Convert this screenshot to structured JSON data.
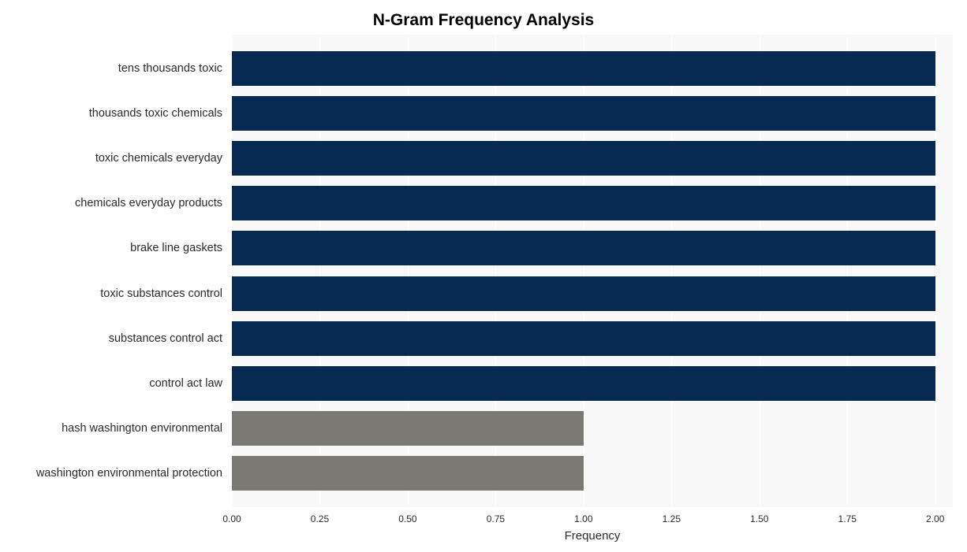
{
  "chart": {
    "type": "bar-horizontal",
    "title": "N-Gram Frequency Analysis",
    "title_fontsize": 21,
    "title_fontweight": "bold",
    "xlabel": "Frequency",
    "xlabel_fontsize": 15,
    "background_color": "#ffffff",
    "plot_background": "#f8f8f8",
    "grid_color": "#ffffff",
    "text_color": "#2a2a2a",
    "y_tick_fontsize": 14.5,
    "x_tick_fontsize": 12,
    "xlim": [
      0,
      2.05
    ],
    "x_ticks": [
      0.0,
      0.25,
      0.5,
      0.75,
      1.0,
      1.25,
      1.5,
      1.75,
      2.0
    ],
    "x_tick_labels": [
      "0.00",
      "0.25",
      "0.50",
      "0.75",
      "1.00",
      "1.25",
      "1.50",
      "1.75",
      "2.00"
    ],
    "bar_height_ratio": 0.77,
    "categories": [
      "tens thousands toxic",
      "thousands toxic chemicals",
      "toxic chemicals everyday",
      "chemicals everyday products",
      "brake line gaskets",
      "toxic substances control",
      "substances control act",
      "control act law",
      "hash washington environmental",
      "washington environmental protection"
    ],
    "values": [
      2,
      2,
      2,
      2,
      2,
      2,
      2,
      2,
      1,
      1
    ],
    "bar_colors": [
      "#062a52",
      "#062a52",
      "#062a52",
      "#062a52",
      "#062a52",
      "#062a52",
      "#062a52",
      "#062a52",
      "#7b7974",
      "#7b7974"
    ]
  }
}
